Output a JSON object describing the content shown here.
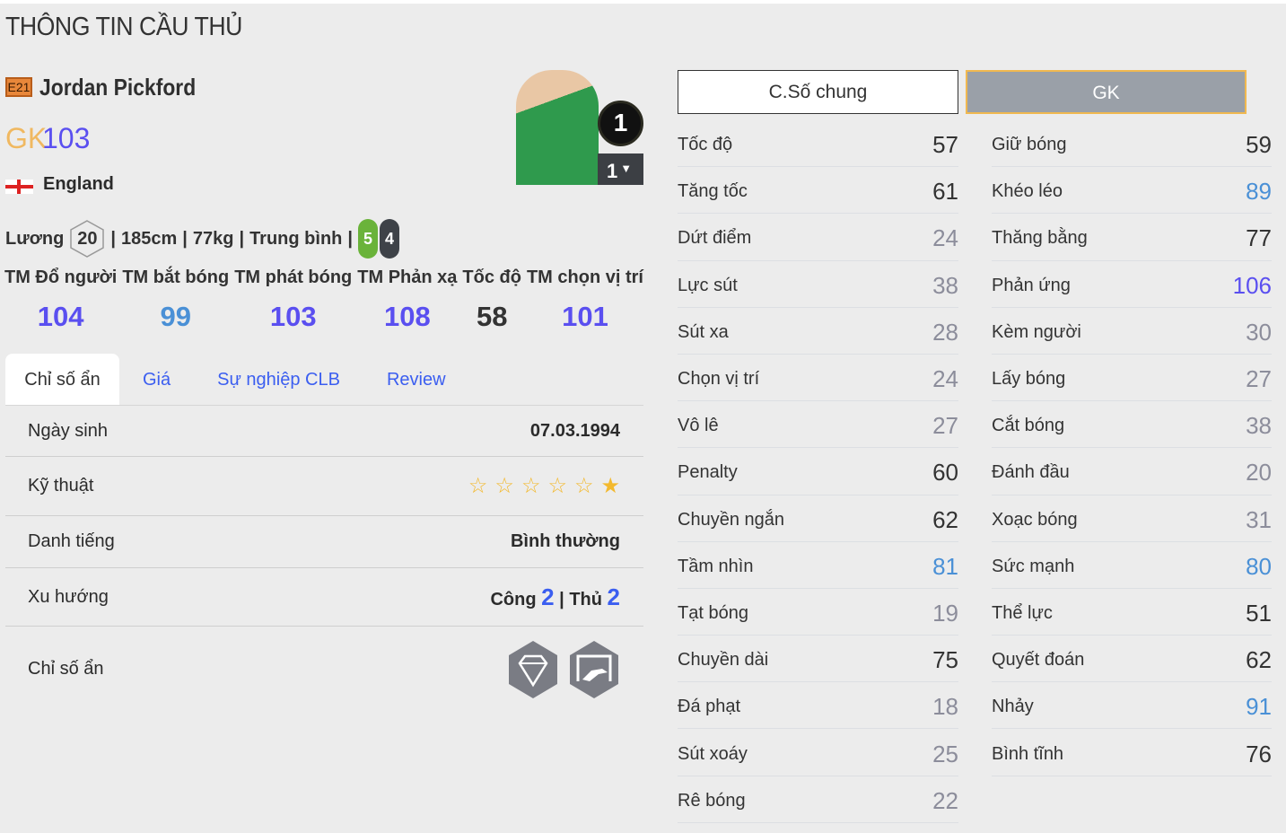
{
  "page_title": "THÔNG TIN CẦU THỦ",
  "player": {
    "season_badge": "E21",
    "name": "Jordan Pickford",
    "position": "GK",
    "overall": "103",
    "country": "England",
    "salary_label": "Lương",
    "salary": "20",
    "height": "185cm",
    "weight": "77kg",
    "body_type": "Trung bình",
    "left_foot": "5",
    "right_foot": "4",
    "shirt_number": "1",
    "upgrade_level": "1"
  },
  "headline_stats": [
    {
      "label": "TM Đổ người",
      "value": "104"
    },
    {
      "label": "TM bắt bóng",
      "value": "99"
    },
    {
      "label": "TM phát bóng",
      "value": "103"
    },
    {
      "label": "TM Phản xạ",
      "value": "108"
    },
    {
      "label": "Tốc độ",
      "value": "58"
    },
    {
      "label": "TM chọn vị trí",
      "value": "101"
    }
  ],
  "tabs": [
    {
      "label": "Chỉ số ẩn",
      "active": true
    },
    {
      "label": "Giá"
    },
    {
      "label": "Sự nghiệp CLB"
    },
    {
      "label": "Review"
    }
  ],
  "details": {
    "birth_label": "Ngày sinh",
    "birth": "07.03.1994",
    "skill_label": "Kỹ thuật",
    "skill_stars": 1,
    "skill_max": 6,
    "fame_label": "Danh tiếng",
    "fame": "Bình thường",
    "trend_label": "Xu hướng",
    "attack_label": "Công",
    "attack": "2",
    "defense_label": "Thủ",
    "defense": "2",
    "hidden_label": "Chỉ số ẩn",
    "hidden_icons": [
      "diamond-icon",
      "goalkeeper-dive-icon"
    ]
  },
  "stat_tabs": [
    {
      "label": "C.Số chung",
      "active": false
    },
    {
      "label": "GK",
      "active": true
    }
  ],
  "colors": {
    "low": "#8c8d9b",
    "mid": "#333333",
    "high": "#4a90d6",
    "elite": "#5a4ff0"
  },
  "stats_left": [
    {
      "label": "Tốc độ",
      "value": 57
    },
    {
      "label": "Tăng tốc",
      "value": 61
    },
    {
      "label": "Dứt điểm",
      "value": 24
    },
    {
      "label": "Lực sút",
      "value": 38
    },
    {
      "label": "Sút xa",
      "value": 28
    },
    {
      "label": "Chọn vị trí",
      "value": 24
    },
    {
      "label": "Vô lê",
      "value": 27
    },
    {
      "label": "Penalty",
      "value": 60
    },
    {
      "label": "Chuyền ngắn",
      "value": 62
    },
    {
      "label": "Tầm nhìn",
      "value": 81
    },
    {
      "label": "Tạt bóng",
      "value": 19
    },
    {
      "label": "Chuyền dài",
      "value": 75
    },
    {
      "label": "Đá phạt",
      "value": 18
    },
    {
      "label": "Sút xoáy",
      "value": 25
    },
    {
      "label": "Rê bóng",
      "value": 22
    }
  ],
  "stats_right": [
    {
      "label": "Giữ bóng",
      "value": 59
    },
    {
      "label": "Khéo léo",
      "value": 89
    },
    {
      "label": "Thăng bằng",
      "value": 77
    },
    {
      "label": "Phản ứng",
      "value": 106
    },
    {
      "label": "Kèm người",
      "value": 30
    },
    {
      "label": "Lấy bóng",
      "value": 27
    },
    {
      "label": "Cắt bóng",
      "value": 38
    },
    {
      "label": "Đánh đầu",
      "value": 20
    },
    {
      "label": "Xoạc bóng",
      "value": 31
    },
    {
      "label": "Sức mạnh",
      "value": 80
    },
    {
      "label": "Thể lực",
      "value": 51
    },
    {
      "label": "Quyết đoán",
      "value": 62
    },
    {
      "label": "Nhảy",
      "value": 91
    },
    {
      "label": "Bình tĩnh",
      "value": 76
    }
  ]
}
